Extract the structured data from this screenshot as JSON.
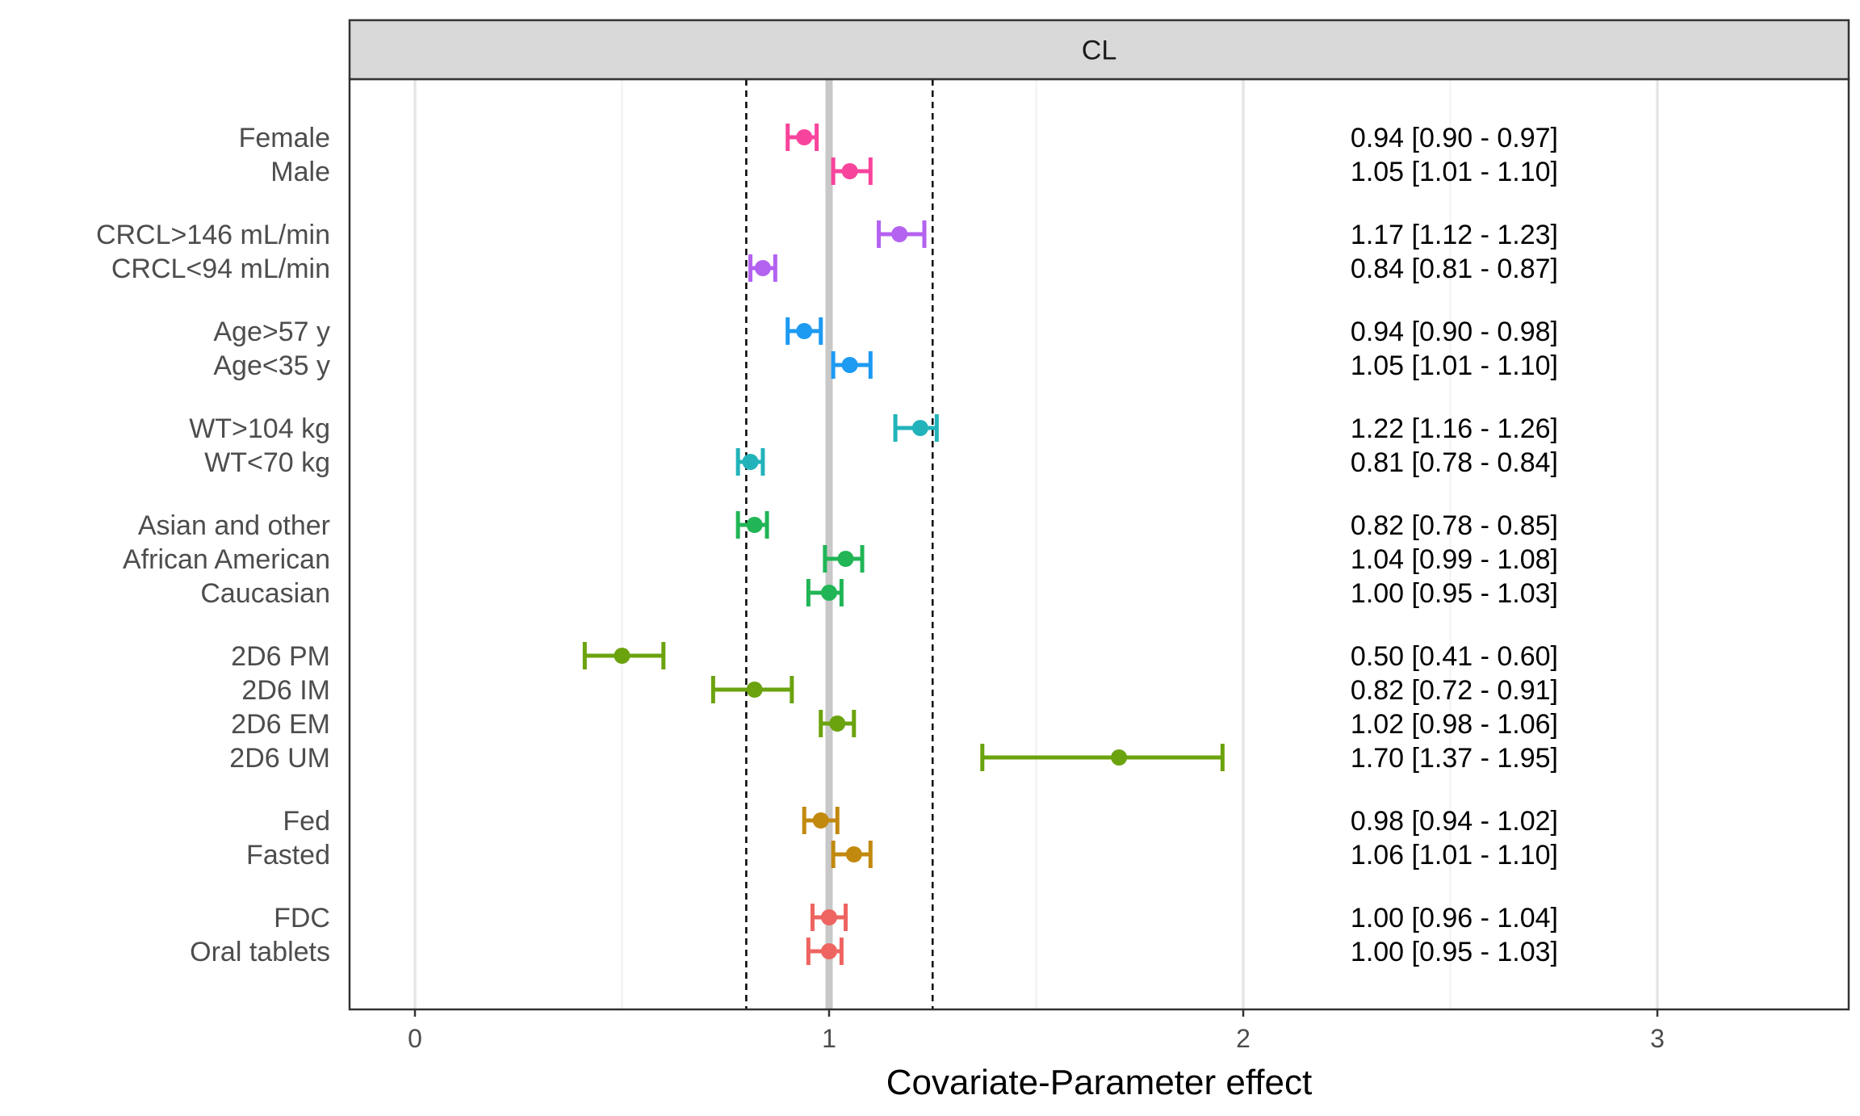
{
  "chart_data": {
    "type": "forest",
    "panel": "CL",
    "xlabel": "Covariate-Parameter effect",
    "ylabel": "",
    "xlim": [
      -0.16,
      3.48
    ],
    "x_ticks": [
      0,
      1,
      2,
      3
    ],
    "x_minor_ticks": [
      0.5,
      1.5,
      2.5
    ],
    "reference_line": 1,
    "dashed_lines": [
      0.8,
      1.25
    ],
    "grid": true,
    "groups": [
      {
        "color": "#F8449C",
        "rows": [
          {
            "label": "Female",
            "value": 0.94,
            "lower": 0.9,
            "upper": 0.97,
            "text": "0.94 [0.90 - 0.97]"
          },
          {
            "label": "Male",
            "value": 1.05,
            "lower": 1.01,
            "upper": 1.1,
            "text": "1.05 [1.01 - 1.10]"
          }
        ]
      },
      {
        "color": "#B462F0",
        "rows": [
          {
            "label": "CRCL>146 mL/min",
            "value": 1.17,
            "lower": 1.12,
            "upper": 1.23,
            "text": "1.17 [1.12 - 1.23]"
          },
          {
            "label": "CRCL<94 mL/min",
            "value": 0.84,
            "lower": 0.81,
            "upper": 0.87,
            "text": "0.84 [0.81 - 0.87]"
          }
        ]
      },
      {
        "color": "#1D9AF2",
        "rows": [
          {
            "label": "Age>57 y",
            "value": 0.94,
            "lower": 0.9,
            "upper": 0.98,
            "text": "0.94 [0.90 - 0.98]"
          },
          {
            "label": "Age<35 y",
            "value": 1.05,
            "lower": 1.01,
            "upper": 1.1,
            "text": "1.05 [1.01 - 1.10]"
          }
        ]
      },
      {
        "color": "#22B3BA",
        "rows": [
          {
            "label": "WT>104 kg",
            "value": 1.22,
            "lower": 1.16,
            "upper": 1.26,
            "text": "1.22 [1.16 - 1.26]"
          },
          {
            "label": "WT<70 kg",
            "value": 0.81,
            "lower": 0.78,
            "upper": 0.84,
            "text": "0.81 [0.78 - 0.84]"
          }
        ]
      },
      {
        "color": "#21B556",
        "rows": [
          {
            "label": "Asian and other",
            "value": 0.82,
            "lower": 0.78,
            "upper": 0.85,
            "text": "0.82 [0.78 - 0.85]"
          },
          {
            "label": "African American",
            "value": 1.04,
            "lower": 0.99,
            "upper": 1.08,
            "text": "1.04 [0.99 - 1.08]"
          },
          {
            "label": "Caucasian",
            "value": 1.0,
            "lower": 0.95,
            "upper": 1.03,
            "text": "1.00 [0.95 - 1.03]"
          }
        ]
      },
      {
        "color": "#6BA30E",
        "rows": [
          {
            "label": "2D6 PM",
            "value": 0.5,
            "lower": 0.41,
            "upper": 0.6,
            "text": "0.50 [0.41 - 0.60]"
          },
          {
            "label": "2D6 IM",
            "value": 0.82,
            "lower": 0.72,
            "upper": 0.91,
            "text": "0.82 [0.72 - 0.91]"
          },
          {
            "label": "2D6 EM",
            "value": 1.02,
            "lower": 0.98,
            "upper": 1.06,
            "text": "1.02 [0.98 - 1.06]"
          },
          {
            "label": "2D6 UM",
            "value": 1.7,
            "lower": 1.37,
            "upper": 1.95,
            "text": "1.70 [1.37 - 1.95]"
          }
        ]
      },
      {
        "color": "#C2890F",
        "rows": [
          {
            "label": "Fed",
            "value": 0.98,
            "lower": 0.94,
            "upper": 1.02,
            "text": "0.98 [0.94 - 1.02]"
          },
          {
            "label": "Fasted",
            "value": 1.06,
            "lower": 1.01,
            "upper": 1.1,
            "text": "1.06 [1.01 - 1.10]"
          }
        ]
      },
      {
        "color": "#EE6460",
        "rows": [
          {
            "label": "FDC",
            "value": 1.0,
            "lower": 0.96,
            "upper": 1.04,
            "text": "1.00 [0.96 - 1.04]"
          },
          {
            "label": "Oral tablets",
            "value": 1.0,
            "lower": 0.95,
            "upper": 1.03,
            "text": "1.00 [0.95 - 1.03]"
          }
        ]
      }
    ],
    "colors": {
      "panel_border": "#333333",
      "strip_fill": "#D9D9D9",
      "grid_major": "#E6E6E6",
      "grid_minor": "#F0F0F0",
      "reference_line": "#C8C8C8",
      "dashed_line": "#000000"
    }
  }
}
